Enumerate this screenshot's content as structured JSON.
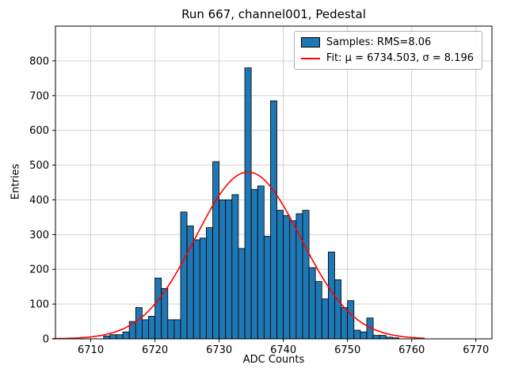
{
  "title": "Run 667, channel001, Pedestal",
  "axes": {
    "xlabel": "ADC Counts",
    "ylabel": "Entries"
  },
  "legend": {
    "samples_label": "Samples: RMS=8.06",
    "fit_label": "Fit: μ = 6734.503, σ = 8.196"
  },
  "colors": {
    "bar": "#1f77b4",
    "bar_edge": "#000000",
    "fit": "#ff0000",
    "grid": "#cccccc",
    "frame": "#000000"
  },
  "chart_data": {
    "type": "bar",
    "subtype": "histogram",
    "title": "Run 667, channel001, Pedestal",
    "xlabel": "ADC Counts",
    "ylabel": "Entries",
    "grid": true,
    "legend_position": "upper right",
    "xlim": [
      6704.5,
      6772.5
    ],
    "ylim": [
      0,
      900
    ],
    "xticks": [
      6710,
      6720,
      6730,
      6740,
      6750,
      6760,
      6770
    ],
    "yticks": [
      0,
      100,
      200,
      300,
      400,
      500,
      600,
      700,
      800
    ],
    "bin_width": 1,
    "bin_left_edges": [
      6712,
      6713,
      6714,
      6715,
      6716,
      6717,
      6718,
      6719,
      6720,
      6721,
      6722,
      6723,
      6724,
      6725,
      6726,
      6727,
      6728,
      6729,
      6730,
      6731,
      6732,
      6733,
      6734,
      6735,
      6736,
      6737,
      6738,
      6739,
      6740,
      6741,
      6742,
      6743,
      6744,
      6745,
      6746,
      6747,
      6748,
      6749,
      6750,
      6751,
      6752,
      6753,
      6754,
      6755,
      6756,
      6757
    ],
    "values": [
      8,
      12,
      12,
      20,
      50,
      90,
      55,
      65,
      175,
      145,
      55,
      55,
      365,
      325,
      285,
      290,
      320,
      510,
      400,
      400,
      415,
      260,
      780,
      430,
      440,
      295,
      685,
      370,
      355,
      340,
      360,
      370,
      205,
      165,
      115,
      250,
      170,
      90,
      110,
      25,
      20,
      60,
      10,
      10,
      5,
      3
    ],
    "series": [
      {
        "name": "Samples: RMS=8.06",
        "type": "histogram"
      },
      {
        "name": "Fit: μ = 6734.503, σ = 8.196",
        "type": "gaussian-fit"
      }
    ],
    "fit": {
      "type": "gaussian",
      "mu": 6734.503,
      "sigma": 8.196,
      "amplitude": 480,
      "range": [
        6704,
        6762
      ]
    },
    "stats": {
      "rms": 8.06
    }
  }
}
